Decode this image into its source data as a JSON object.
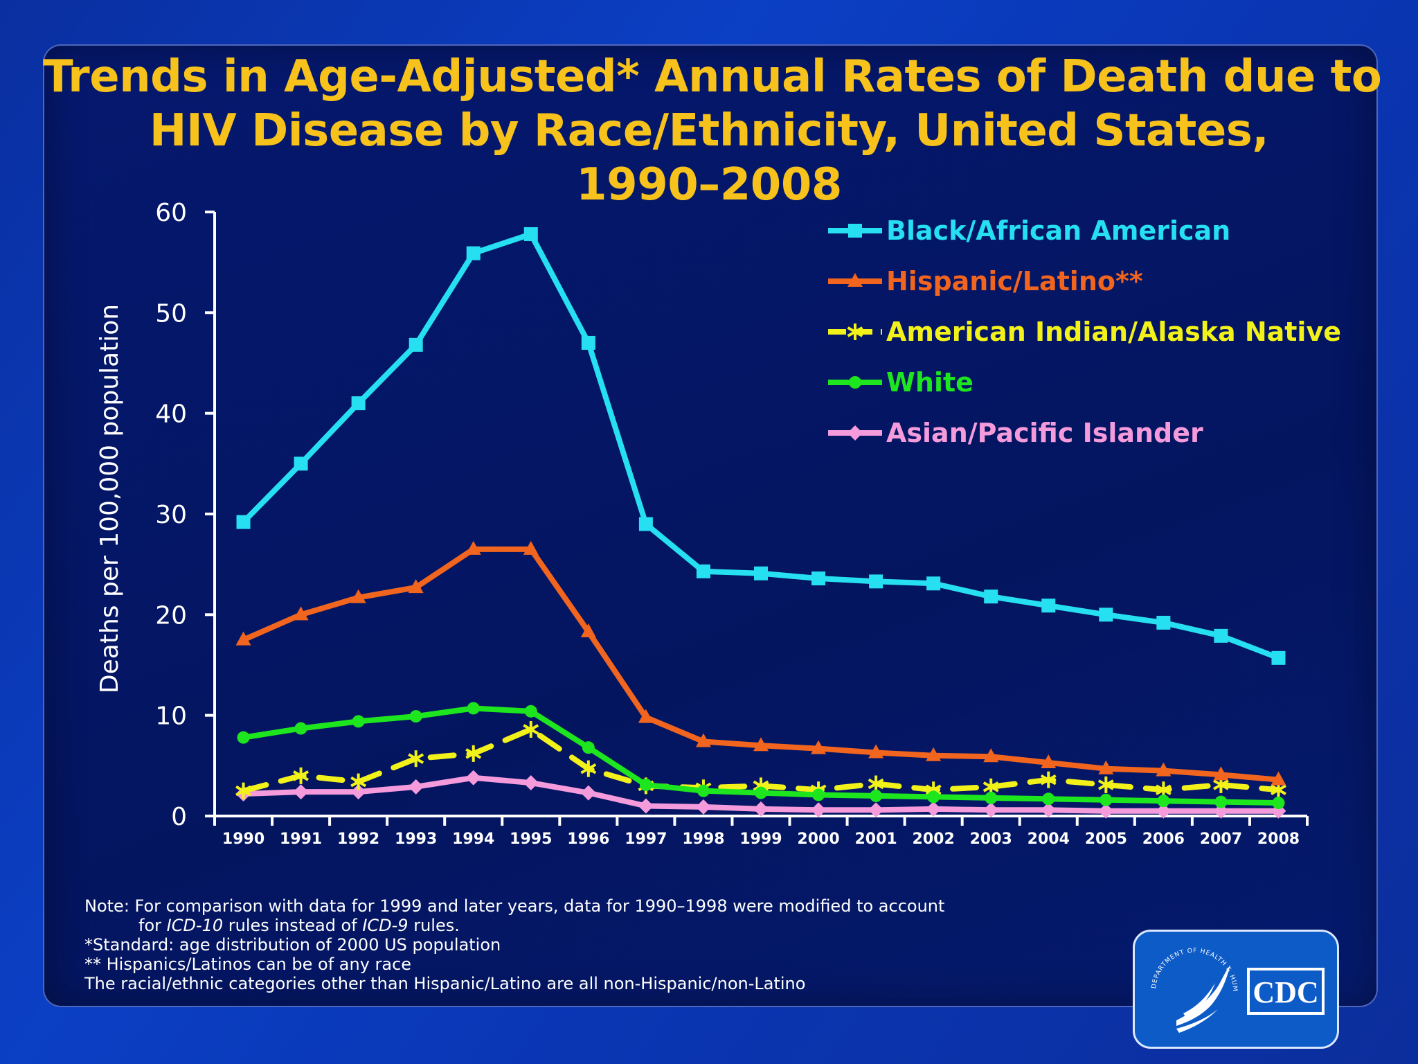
{
  "title": {
    "line1": "Trends in Age-Adjusted* Annual Rates of Death due to",
    "line2": "HIV Disease by Race/Ethnicity, United States,",
    "line3": "1990–2008"
  },
  "chart_data": {
    "type": "line",
    "title": "Trends in Age-Adjusted* Annual Rates of Death due to HIV Disease by Race/Ethnicity, United States, 1990–2008",
    "xlabel": "",
    "ylabel": "Deaths per 100,000 population",
    "ylim": [
      0,
      60
    ],
    "yticks": [
      "0",
      "10",
      "20",
      "30",
      "40",
      "50",
      "60"
    ],
    "categories": [
      "1990",
      "1991",
      "1992",
      "1993",
      "1994",
      "1995",
      "1996",
      "1997",
      "1998",
      "1999",
      "2000",
      "2001",
      "2002",
      "2003",
      "2004",
      "2005",
      "2006",
      "2007",
      "2008"
    ],
    "legend_position": "top-right",
    "series": [
      {
        "name": "Black/African American",
        "color": "#26e0f2",
        "marker": "square",
        "dashed": false,
        "values": [
          29.2,
          35.0,
          41.0,
          46.8,
          55.9,
          57.8,
          47.0,
          29.0,
          24.3,
          24.1,
          23.6,
          23.3,
          23.1,
          21.8,
          20.9,
          20.0,
          19.2,
          17.9,
          15.7
        ]
      },
      {
        "name": "Hispanic/Latino**",
        "color": "#f2651e",
        "marker": "triangle",
        "dashed": false,
        "values": [
          17.5,
          20.0,
          21.7,
          22.7,
          26.5,
          26.5,
          18.3,
          9.8,
          7.4,
          7.0,
          6.7,
          6.3,
          6.0,
          5.9,
          5.3,
          4.7,
          4.5,
          4.1,
          3.6
        ]
      },
      {
        "name": "American Indian/Alaska Native",
        "color": "#f2f21a",
        "marker": "star",
        "dashed": true,
        "values": [
          2.5,
          4.0,
          3.4,
          5.7,
          6.2,
          8.6,
          4.7,
          3.0,
          2.8,
          3.0,
          2.6,
          3.2,
          2.6,
          2.9,
          3.6,
          3.1,
          2.6,
          3.1,
          2.6
        ]
      },
      {
        "name": "White",
        "color": "#1ee61e",
        "marker": "circle",
        "dashed": false,
        "values": [
          7.8,
          8.7,
          9.4,
          9.9,
          10.7,
          10.4,
          6.8,
          3.1,
          2.5,
          2.3,
          2.1,
          2.0,
          1.9,
          1.8,
          1.7,
          1.6,
          1.5,
          1.4,
          1.3
        ]
      },
      {
        "name": "Asian/Pacific Islander",
        "color": "#f59bdc",
        "marker": "diamond",
        "dashed": false,
        "values": [
          2.2,
          2.4,
          2.4,
          2.9,
          3.8,
          3.3,
          2.3,
          1.0,
          0.9,
          0.7,
          0.6,
          0.6,
          0.7,
          0.6,
          0.6,
          0.5,
          0.5,
          0.5,
          0.5
        ]
      }
    ]
  },
  "notes": {
    "line1": "Note: For comparison with data for 1999 and later years, data for 1990–1998 were modified to account",
    "line2_pre": "for ",
    "line2_icd10": "ICD-10",
    "line2_mid": " rules instead of ",
    "line2_icd9": "ICD-9",
    "line2_post": " rules.",
    "line3": "*Standard: age distribution of 2000 US population",
    "line4": "** Hispanics/Latinos can be of any race",
    "line5": "The racial/ethnic categories other than Hispanic/Latino are all non-Hispanic/non-Latino"
  },
  "logo": {
    "cdc_text": "CDC",
    "seal_text": "DEPARTMENT OF HEALTH & HUMAN SERVICES USA"
  }
}
